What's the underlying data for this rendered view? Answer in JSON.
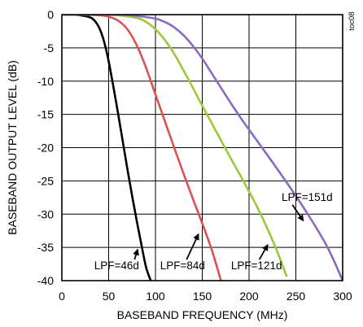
{
  "chart_data": {
    "type": "line",
    "title": "",
    "xlabel": "BASEBAND FREQUENCY (MHz)",
    "ylabel": "BASEBAND OUTPUT LEVEL (dB)",
    "side_label": "toc08",
    "xlim": [
      0,
      300
    ],
    "ylim": [
      -40,
      0
    ],
    "x_ticks": [
      0,
      50,
      100,
      150,
      200,
      250,
      300
    ],
    "y_ticks": [
      0,
      -5,
      -10,
      -15,
      -20,
      -25,
      -30,
      -35,
      -40
    ],
    "grid": true,
    "series": [
      {
        "name": "LPF=46d",
        "color": "#000000",
        "x": [
          0,
          10,
          20,
          30,
          35,
          40,
          45,
          50,
          55,
          60,
          65,
          70,
          75,
          80,
          85,
          90,
          95
        ],
        "y": [
          0,
          0,
          -0.1,
          -0.4,
          -0.9,
          -2.0,
          -4.0,
          -7.0,
          -10.8,
          -14.8,
          -19.0,
          -23.2,
          -27.2,
          -31.0,
          -34.6,
          -38.0,
          -40.0
        ]
      },
      {
        "name": "LPF=84d",
        "color": "#d9534f",
        "x": [
          0,
          20,
          40,
          50,
          60,
          70,
          80,
          90,
          100,
          110,
          120,
          130,
          140,
          150,
          160,
          170
        ],
        "y": [
          0,
          0,
          -0.1,
          -0.3,
          -0.9,
          -2.2,
          -4.6,
          -8.0,
          -12.0,
          -16.0,
          -20.0,
          -23.9,
          -27.7,
          -31.4,
          -35.3,
          -40.0
        ]
      },
      {
        "name": "LPF=121d",
        "color": "#9cc83a",
        "x": [
          0,
          40,
          60,
          80,
          90,
          100,
          110,
          120,
          130,
          140,
          150,
          160,
          170,
          180,
          190,
          200,
          210,
          220,
          230,
          240
        ],
        "y": [
          0,
          0,
          -0.1,
          -0.5,
          -1.1,
          -2.2,
          -3.8,
          -5.9,
          -8.4,
          -11.0,
          -13.7,
          -16.3,
          -18.9,
          -21.5,
          -24.0,
          -26.6,
          -29.3,
          -32.3,
          -35.6,
          -39.3
        ]
      },
      {
        "name": "LPF=151d",
        "color": "#8b6bbf",
        "x": [
          0,
          60,
          80,
          100,
          110,
          120,
          130,
          140,
          150,
          160,
          170,
          180,
          190,
          200,
          220,
          240,
          260,
          280,
          290,
          300
        ],
        "y": [
          0,
          0,
          -0.2,
          -0.6,
          -1.1,
          -1.9,
          -3.1,
          -4.7,
          -6.6,
          -8.8,
          -11.0,
          -13.2,
          -15.3,
          -17.3,
          -21.2,
          -25.2,
          -29.4,
          -34.0,
          -36.8,
          -40.0
        ]
      }
    ],
    "annotations": [
      {
        "text": "LPF=46d",
        "label_at": [
          58.5,
          -38.3
        ],
        "arrow_to": [
          81,
          -35.3
        ]
      },
      {
        "text": "LPF=84d",
        "label_at": [
          129,
          -38.3
        ],
        "arrow_to": [
          146,
          -33.0
        ]
      },
      {
        "text": "LPF=121d",
        "label_at": [
          208,
          -38.3
        ],
        "arrow_to": [
          220,
          -34.6
        ]
      },
      {
        "text": "LPF=151d",
        "label_at": [
          262,
          -28.0
        ],
        "arrow_to": [
          258,
          -31.0
        ]
      }
    ]
  }
}
